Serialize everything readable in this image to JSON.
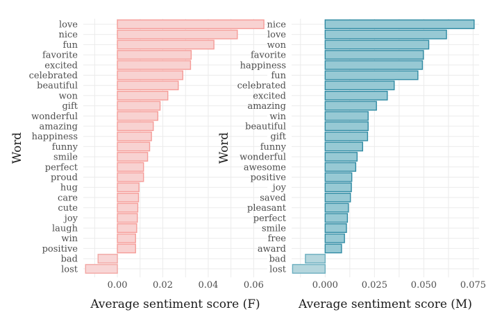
{
  "chart_data": [
    {
      "type": "bar",
      "orientation": "horizontal",
      "xlabel": "Average sentiment score (F)",
      "ylabel": "Word",
      "xlim": [
        -0.015,
        0.066
      ],
      "xticks": [
        0.0,
        0.02,
        0.04,
        0.06
      ],
      "xtick_labels": [
        "0.00",
        "0.02",
        "0.04",
        "0.06"
      ],
      "grid": true,
      "fill_positive": "#f8d2d1",
      "stroke_positive": "#f59c98",
      "fill_negative": "#f8d6d6",
      "stroke_negative": "#f2a6a3",
      "categories": [
        "love",
        "nice",
        "fun",
        "favorite",
        "excited",
        "celebrated",
        "beautiful",
        "won",
        "gift",
        "wonderful",
        "amazing",
        "happiness",
        "funny",
        "smile",
        "perfect",
        "proud",
        "hug",
        "care",
        "cute",
        "joy",
        "laugh",
        "win",
        "positive",
        "bad",
        "lost"
      ],
      "values": [
        0.0645,
        0.0528,
        0.0425,
        0.0325,
        0.0322,
        0.0288,
        0.0268,
        0.0222,
        0.0188,
        0.0178,
        0.0158,
        0.015,
        0.0142,
        0.0133,
        0.0115,
        0.0115,
        0.0095,
        0.0093,
        0.009,
        0.0088,
        0.0085,
        0.008,
        0.008,
        -0.0085,
        -0.014
      ]
    },
    {
      "type": "bar",
      "orientation": "horizontal",
      "xlabel": "Average sentiment score (M)",
      "ylabel": "Word",
      "xlim": [
        -0.017,
        0.078
      ],
      "xticks": [
        0.0,
        0.025,
        0.05,
        0.075
      ],
      "xtick_labels": [
        "0.000",
        "0.025",
        "0.050",
        "0.075"
      ],
      "grid": true,
      "fill_positive": "#97c9d4",
      "stroke_positive": "#2f8aa3",
      "fill_negative": "#b5d6dd",
      "stroke_negative": "#6aaebf",
      "categories": [
        "nice",
        "love",
        "won",
        "favorite",
        "happiness",
        "fun",
        "celebrated",
        "excited",
        "amazing",
        "win",
        "beautiful",
        "gift",
        "funny",
        "wonderful",
        "awesome",
        "positive",
        "joy",
        "saved",
        "pleasant",
        "perfect",
        "smile",
        "free",
        "award",
        "bad",
        "lost"
      ],
      "values": [
        0.0755,
        0.0615,
        0.0525,
        0.0498,
        0.0493,
        0.047,
        0.035,
        0.0315,
        0.026,
        0.0218,
        0.0218,
        0.0215,
        0.019,
        0.0162,
        0.0155,
        0.0135,
        0.0133,
        0.0128,
        0.0118,
        0.0113,
        0.0108,
        0.0098,
        0.0083,
        -0.01,
        -0.0165
      ]
    }
  ]
}
